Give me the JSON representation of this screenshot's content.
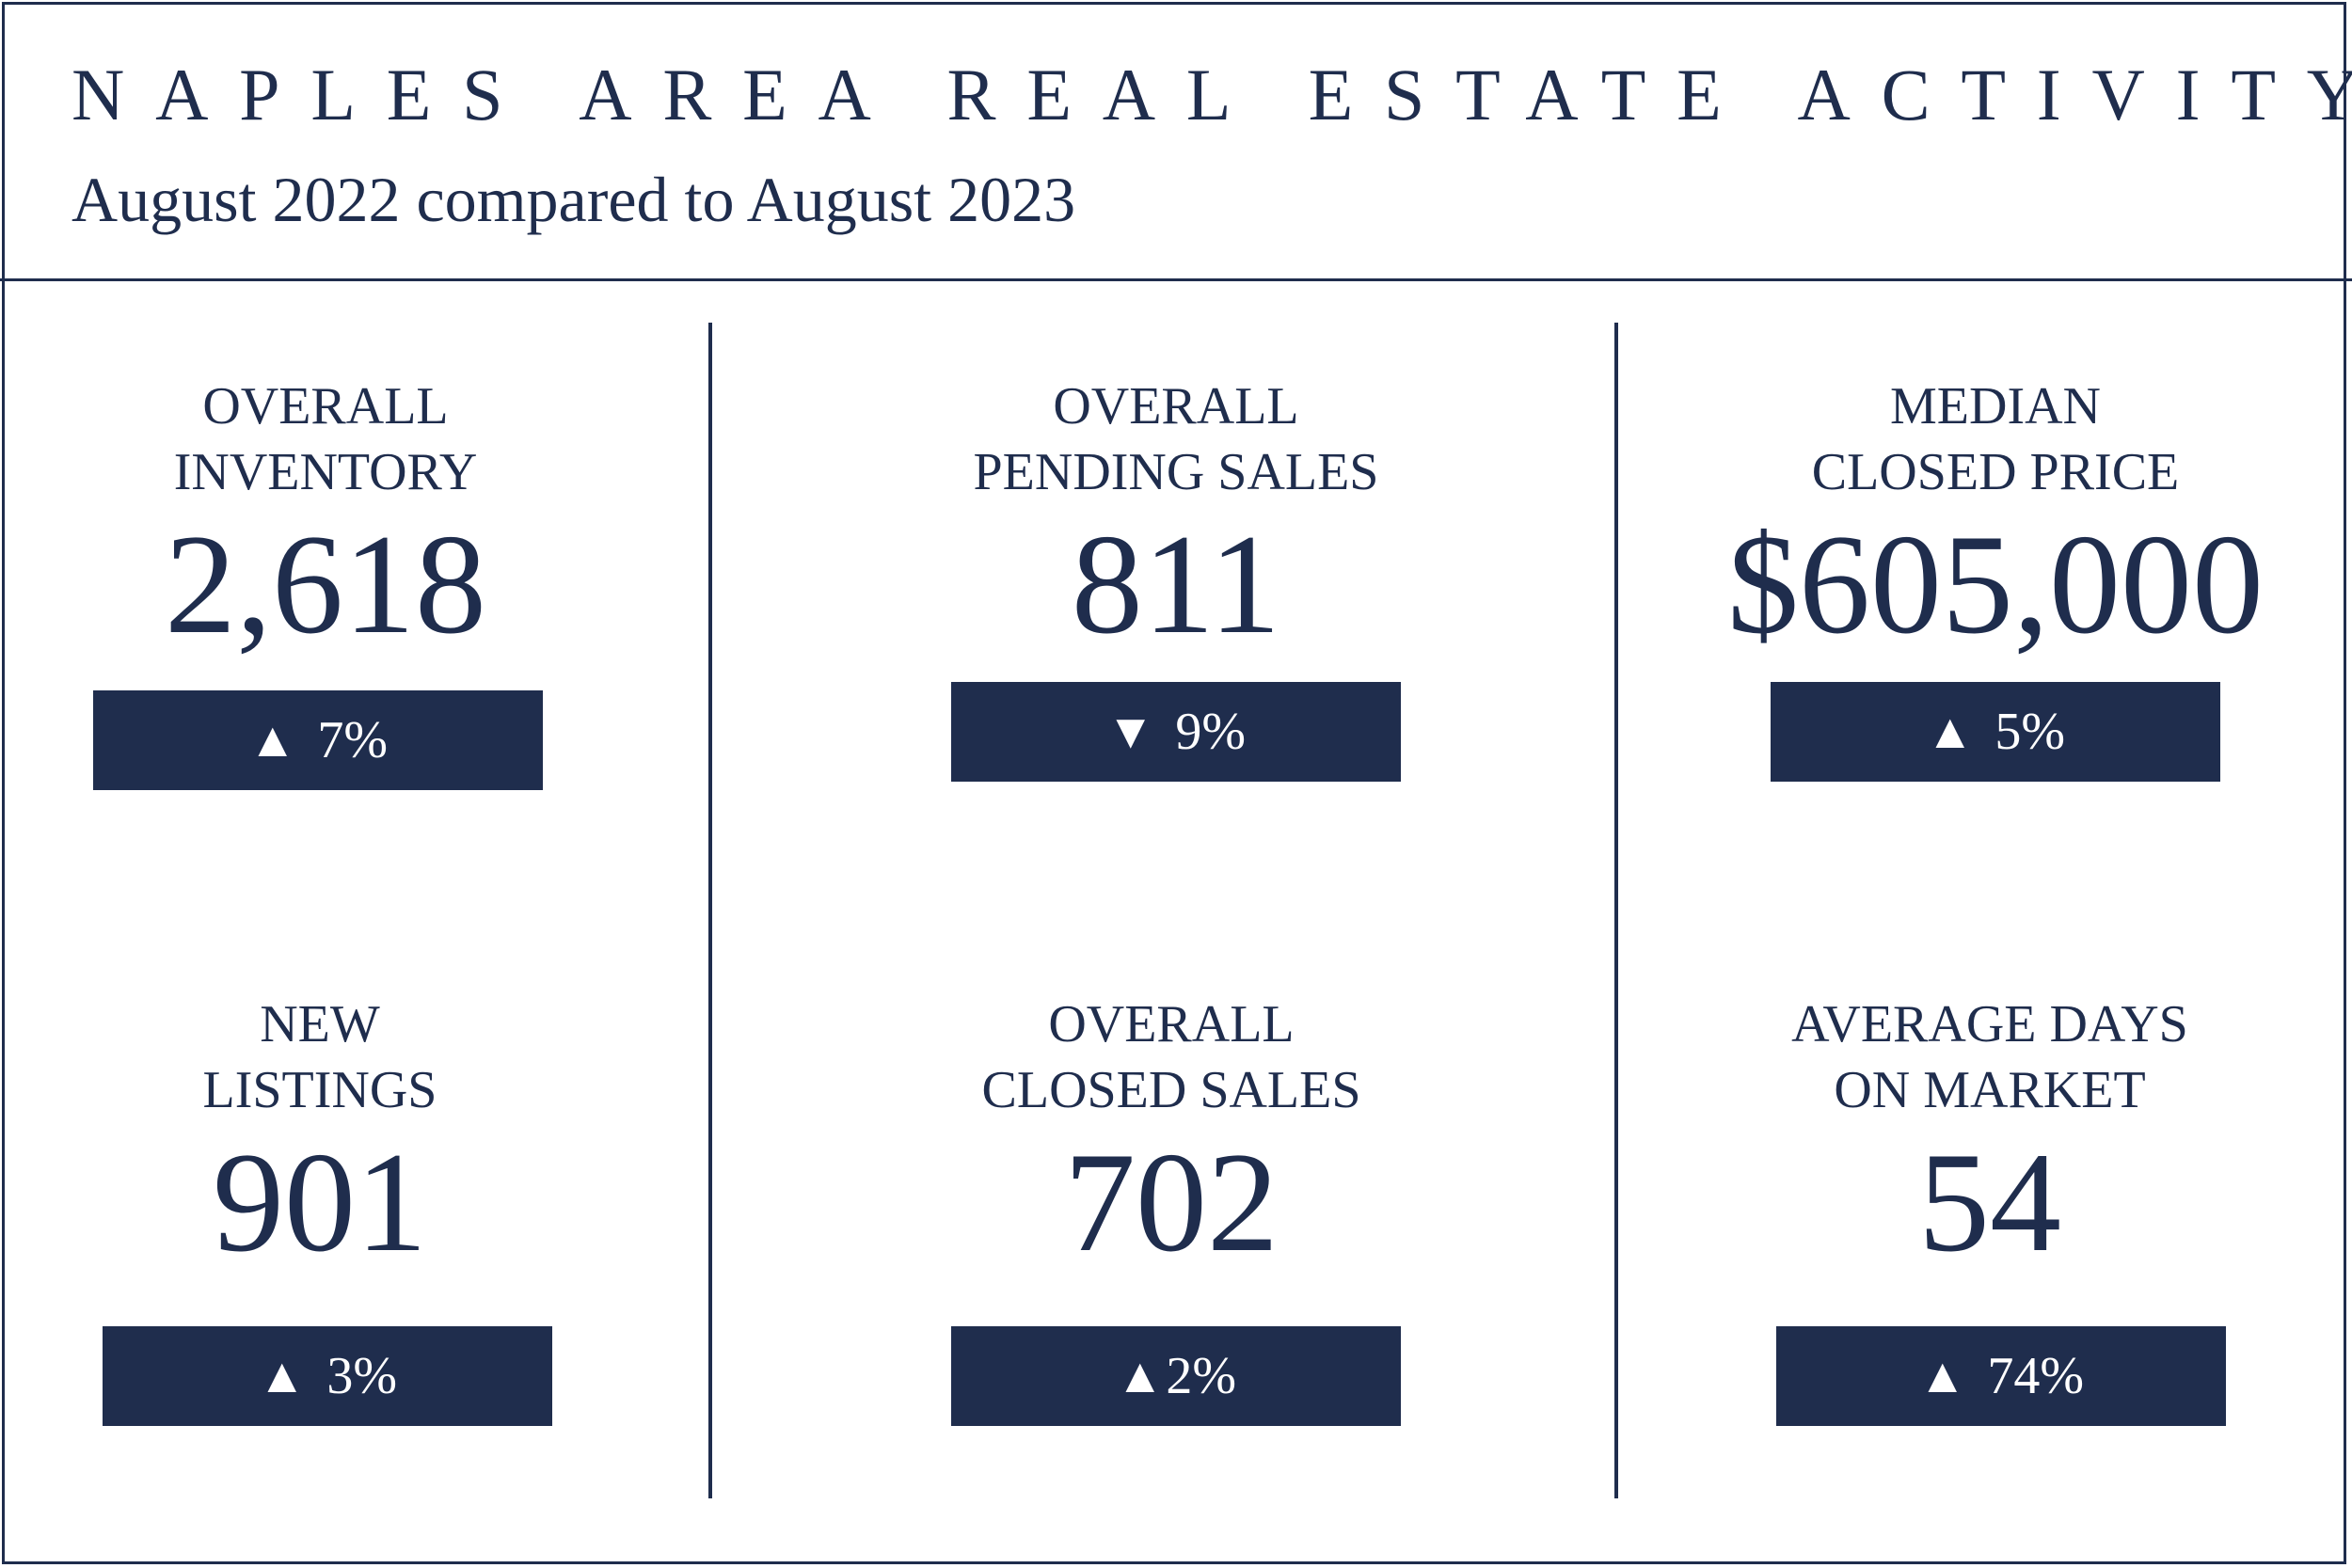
{
  "header": {
    "title": "NAPLES AREA REAL ESTATE ACTIVITY",
    "subtitle": "August 2022 compared to August 2023"
  },
  "stats": [
    {
      "label_line1": "OVERALL",
      "label_line2": "INVENTORY",
      "value": "2,618",
      "direction": "up",
      "arrow": "▲",
      "change": "7%"
    },
    {
      "label_line1": "OVERALL",
      "label_line2": "PENDING SALES",
      "value": "811",
      "direction": "down",
      "arrow": "▼",
      "change": "9%"
    },
    {
      "label_line1": "MEDIAN",
      "label_line2": "CLOSED PRICE",
      "value": "$605,000",
      "direction": "up",
      "arrow": "▲",
      "change": "5%"
    },
    {
      "label_line1": "NEW",
      "label_line2": "LISTINGS",
      "value": "901",
      "direction": "up",
      "arrow": "▲",
      "change": "3%"
    },
    {
      "label_line1": "OVERALL",
      "label_line2": "CLOSED SALES",
      "value": "702",
      "direction": "up",
      "arrow": "▲",
      "change": "2%"
    },
    {
      "label_line1": "AVERAGE DAYS",
      "label_line2": "ON MARKET",
      "value": "54",
      "direction": "up",
      "arrow": "▲",
      "change": "74%"
    }
  ],
  "colors": {
    "navy": "#1f2d4d",
    "background": "#ffffff"
  }
}
